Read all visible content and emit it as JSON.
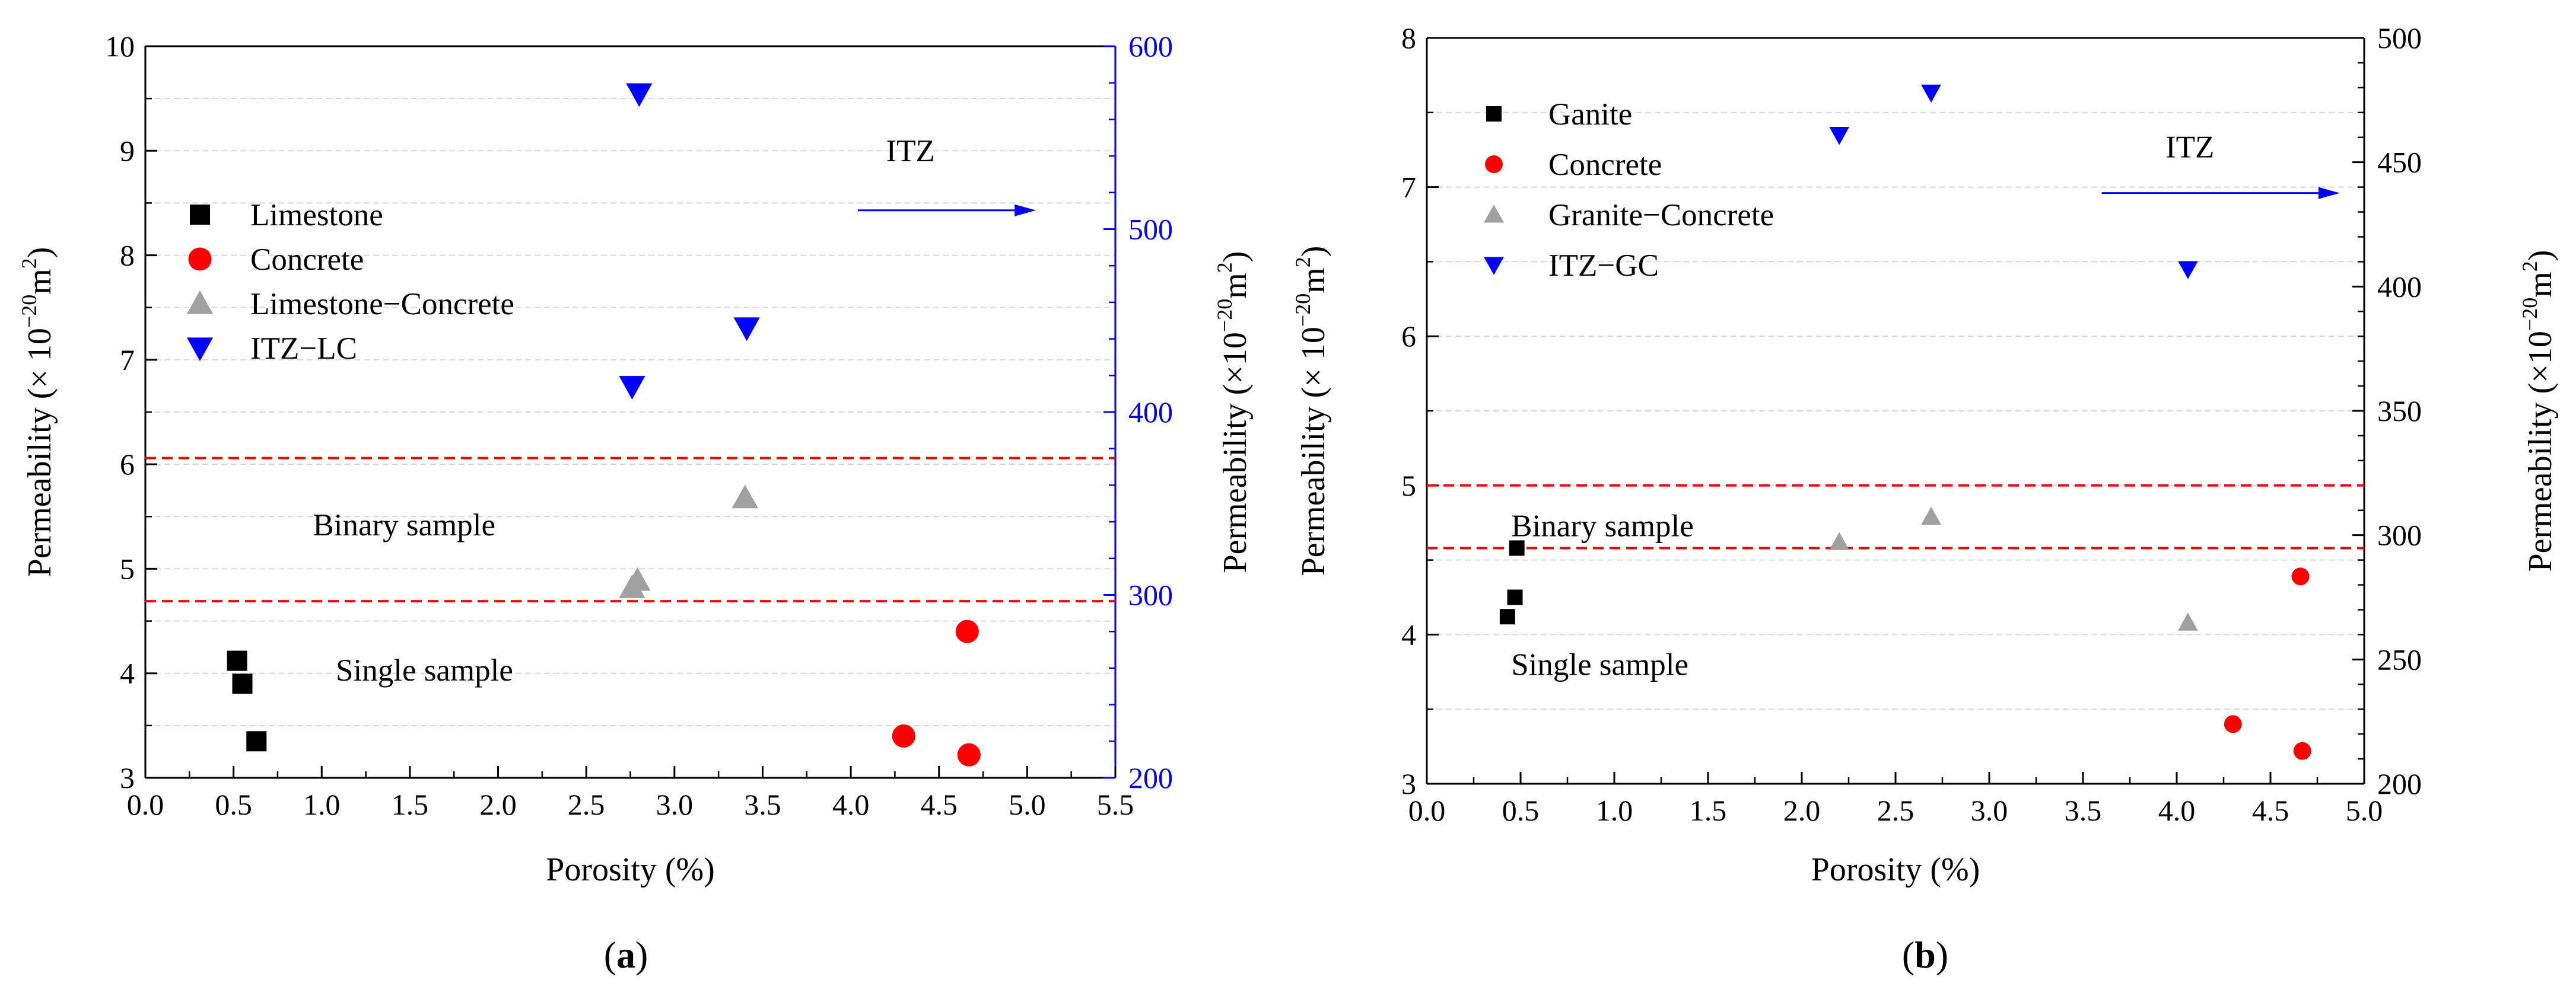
{
  "chart_data": [
    {
      "type": "scatter",
      "panel_label": "(a)",
      "panel_letter": "a",
      "xlabel": "Porosity (%)",
      "ylabel": "Permeability (×10−20m2)",
      "ylabel_parts": {
        "prefix": "Permeability  (× 10",
        "exp": "−20",
        "mid": "m",
        "exp2": "2",
        "suffix": ")"
      },
      "y2label": "Permeability (×10−20m2)",
      "y2label_parts": {
        "prefix": "Permeability (×10",
        "exp": "−20",
        "mid": "m",
        "exp2": "2",
        "suffix": ")"
      },
      "xlim": [
        0,
        5.5
      ],
      "ylim": [
        3,
        10
      ],
      "y2lim": [
        200,
        600
      ],
      "y2_color": "#0000ff",
      "x_ticks": [
        "0.0",
        "0.5",
        "1.0",
        "1.5",
        "2.0",
        "2.5",
        "3.0",
        "3.5",
        "4.0",
        "4.5",
        "5.0",
        "5.5"
      ],
      "y_ticks": [
        "3",
        "4",
        "5",
        "6",
        "7",
        "8",
        "9",
        "10"
      ],
      "y2_ticks": [
        "200",
        "300",
        "400",
        "500",
        "600"
      ],
      "grid": true,
      "legend_position": "left",
      "series": [
        {
          "name": "Limestone",
          "marker": "square",
          "color": "#000000",
          "axis": "left",
          "points": [
            [
              0.52,
              4.12
            ],
            [
              0.55,
              3.9
            ],
            [
              0.63,
              3.35
            ]
          ]
        },
        {
          "name": "Concrete",
          "marker": "circle",
          "color": "#ff0000",
          "axis": "left",
          "points": [
            [
              4.3,
              3.4
            ],
            [
              4.66,
              4.4
            ],
            [
              4.67,
              3.22
            ]
          ]
        },
        {
          "name": "Limestone−Concrete",
          "marker": "triangle-up",
          "color": "#a0a0a0",
          "axis": "left",
          "points": [
            [
              2.76,
              4.82
            ],
            [
              2.79,
              4.89
            ],
            [
              3.4,
              5.68
            ]
          ]
        },
        {
          "name": "ITZ−LC",
          "marker": "triangle-down",
          "color": "#0000ff",
          "axis": "right",
          "points": [
            [
              2.76,
              414
            ],
            [
              2.8,
              574
            ],
            [
              3.41,
              446
            ]
          ]
        }
      ],
      "reference_lines": [
        {
          "y": 6.06,
          "color": "#ff0000",
          "style": "dashed"
        },
        {
          "y": 4.69,
          "color": "#ff0000",
          "style": "dashed"
        }
      ],
      "annotations": [
        {
          "text": "ITZ",
          "x": 4.2,
          "y": 8.9
        },
        {
          "text": "Binary sample",
          "x": 0.95,
          "y": 5.32
        },
        {
          "text": "Single sample",
          "x": 1.08,
          "y": 3.93
        }
      ],
      "arrow": {
        "x_from": 4.04,
        "x_to": 5.05,
        "y": 8.43,
        "color": "#0000ff"
      }
    },
    {
      "type": "scatter",
      "panel_label": "(b)",
      "panel_letter": "b",
      "xlabel": "Porosity (%)",
      "ylabel": "Permeability (× 10−20m2)",
      "ylabel_parts": {
        "prefix": "Permeability  (× 10",
        "exp": "−20",
        "mid": "m",
        "exp2": "2",
        "suffix": ")"
      },
      "y2label": "Permeability (×10−20m2)",
      "y2label_parts": {
        "prefix": "Permeability (×10",
        "exp": "−20",
        "mid": "m",
        "exp2": "2",
        "suffix": ")"
      },
      "xlim": [
        0,
        5
      ],
      "ylim": [
        3,
        8
      ],
      "y2lim": [
        200,
        500
      ],
      "y2_color": "#000000",
      "x_ticks": [
        "0.0",
        "0.5",
        "1.0",
        "1.5",
        "2.0",
        "2.5",
        "3.0",
        "3.5",
        "4.0",
        "4.5",
        "5.0"
      ],
      "y_ticks": [
        "3",
        "4",
        "5",
        "6",
        "7",
        "8"
      ],
      "y2_ticks": [
        "200",
        "250",
        "300",
        "350",
        "400",
        "450",
        "500"
      ],
      "grid": true,
      "legend_position": "top-left",
      "series": [
        {
          "name": "Ganite",
          "marker": "square",
          "color": "#000000",
          "axis": "left",
          "points": [
            [
              0.43,
              4.12
            ],
            [
              0.47,
              4.25
            ],
            [
              0.48,
              4.58
            ]
          ]
        },
        {
          "name": "Concrete",
          "marker": "circle",
          "color": "#ff0000",
          "axis": "left",
          "points": [
            [
              4.3,
              3.4
            ],
            [
              4.66,
              4.39
            ],
            [
              4.67,
              3.22
            ]
          ]
        },
        {
          "name": "Granite−Concrete",
          "marker": "triangle-up",
          "color": "#a0a0a0",
          "axis": "left",
          "points": [
            [
              2.2,
              4.62
            ],
            [
              2.69,
              4.79
            ],
            [
              4.06,
              4.08
            ]
          ]
        },
        {
          "name": "ITZ−GC",
          "marker": "triangle-down",
          "color": "#0000ff",
          "axis": "right",
          "points": [
            [
              2.2,
              461
            ],
            [
              2.69,
              478
            ],
            [
              4.06,
              407
            ]
          ]
        }
      ],
      "reference_lines": [
        {
          "y": 5.0,
          "color": "#ff0000",
          "style": "dashed"
        },
        {
          "y": 4.58,
          "color": "#ff0000",
          "style": "dashed"
        }
      ],
      "annotations": [
        {
          "text": "ITZ",
          "x": 3.94,
          "y": 7.2
        },
        {
          "text": "Binary sample",
          "x": 0.45,
          "y": 4.66
        },
        {
          "text": "Single sample",
          "x": 0.45,
          "y": 3.73
        }
      ],
      "arrow": {
        "x_from": 3.6,
        "x_to": 4.87,
        "y": 6.96,
        "color": "#0000ff"
      }
    }
  ]
}
